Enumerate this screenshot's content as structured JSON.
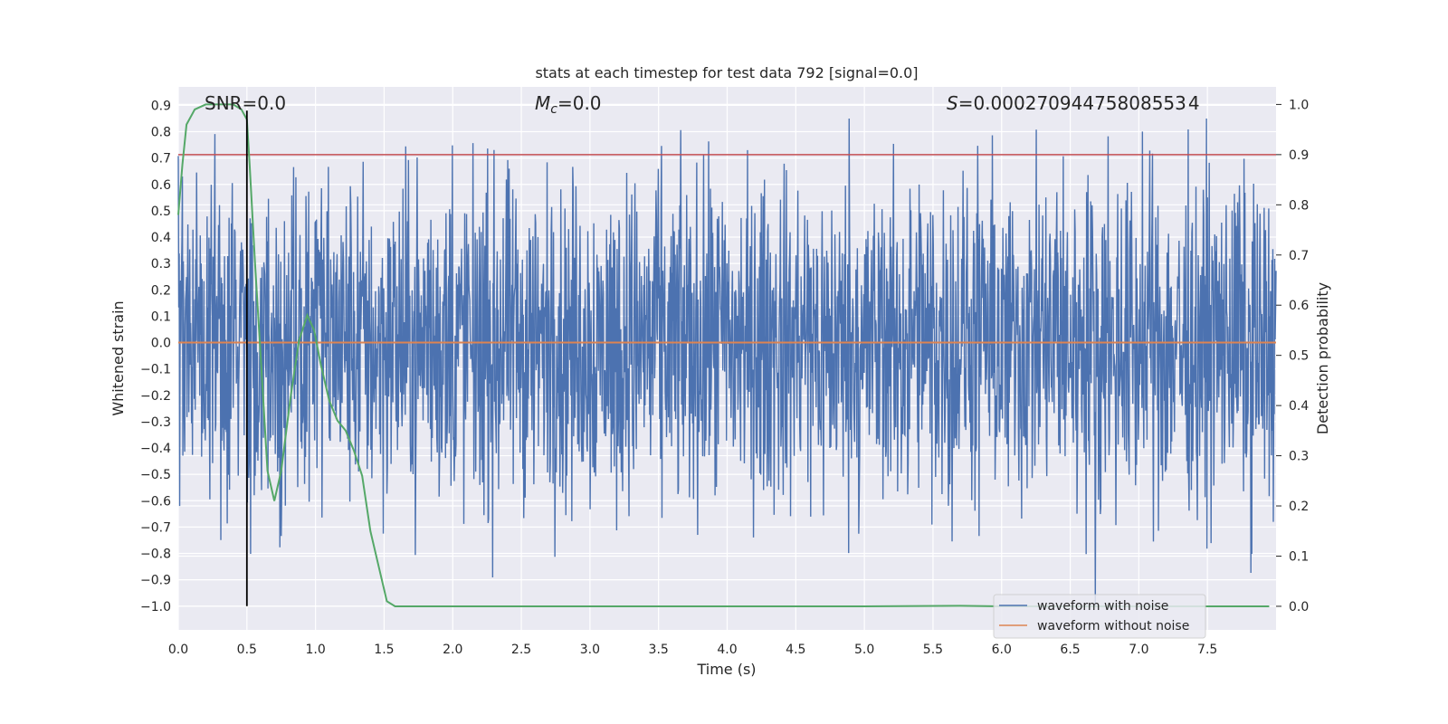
{
  "chart_data": {
    "type": "line",
    "title": "stats at each timestep for test data 792 [signal=0.0]",
    "xlabel": "Time (s)",
    "ylabel": "Whitened strain",
    "ylabel_right": "Detection probability",
    "xlim": [
      0.0,
      8.0
    ],
    "ylim": [
      -1.09,
      0.97
    ],
    "ylim_right": [
      -0.047,
      1.035
    ],
    "x_ticks": [
      0.0,
      0.5,
      1.0,
      1.5,
      2.0,
      2.5,
      3.0,
      3.5,
      4.0,
      4.5,
      5.0,
      5.5,
      6.0,
      6.5,
      7.0,
      7.5
    ],
    "x_tick_labels": [
      "0.0",
      "0.5",
      "1.0",
      "1.5",
      "2.0",
      "2.5",
      "3.0",
      "3.5",
      "4.0",
      "4.5",
      "5.0",
      "5.5",
      "6.0",
      "6.5",
      "7.0",
      "7.5"
    ],
    "y_ticks": [
      0.9,
      0.8,
      0.7,
      0.6,
      0.5,
      0.4,
      0.3,
      0.2,
      0.1,
      0.0,
      -0.1,
      -0.2,
      -0.3,
      -0.4,
      -0.5,
      -0.6,
      -0.7,
      -0.8,
      -0.9,
      -1.0
    ],
    "y_tick_labels": [
      "0.9",
      "0.8",
      "0.7",
      "0.6",
      "0.5",
      "0.4",
      "0.3",
      "0.2",
      "0.1",
      "0.0",
      "−0.1",
      "−0.2",
      "−0.3",
      "−0.4",
      "−0.5",
      "−0.6",
      "−0.7",
      "−0.8",
      "−0.9",
      "−1.0"
    ],
    "y_right_ticks": [
      1.0,
      0.9,
      0.8,
      0.7,
      0.6,
      0.5,
      0.4,
      0.3,
      0.2,
      0.1,
      0.0
    ],
    "y_right_tick_labels": [
      "1.0",
      "0.9",
      "0.8",
      "0.7",
      "0.6",
      "0.5",
      "0.4",
      "0.3",
      "0.2",
      "0.1",
      "0.0"
    ],
    "grid": true,
    "legend_position": "lower-right",
    "annotations": {
      "snr": "SNR=0.0",
      "mc_symbol": "M",
      "mc_sub": "c",
      "mc_value": "=0.0",
      "s_symbol": "S",
      "s_value": "=0.00027094475808553 4"
    },
    "series": [
      {
        "name": "waveform with noise",
        "color": "#4c72b0",
        "axis": "left",
        "description_range": [
          -1.0,
          0.85
        ],
        "t_range": [
          0.0,
          8.0
        ]
      },
      {
        "name": "waveform without noise",
        "color": "#dd8452",
        "axis": "left",
        "x": [
          0.0,
          8.0
        ],
        "y": [
          0.0,
          0.0
        ]
      },
      {
        "name": "detection probability",
        "color": "#55a868",
        "axis": "right",
        "x": [
          0.0,
          0.03,
          0.06,
          0.12,
          0.2,
          0.3,
          0.4,
          0.46,
          0.5,
          0.52,
          0.56,
          0.6,
          0.65,
          0.7,
          0.75,
          0.82,
          0.88,
          0.94,
          0.99,
          1.04,
          1.1,
          1.16,
          1.22,
          1.28,
          1.34,
          1.4,
          1.46,
          1.52,
          1.58,
          2.0,
          3.0,
          4.0,
          5.0,
          5.7,
          6.0,
          7.0,
          7.95
        ],
        "y": [
          0.78,
          0.88,
          0.96,
          0.99,
          1.0,
          1.0,
          1.0,
          0.99,
          0.97,
          0.88,
          0.68,
          0.5,
          0.27,
          0.21,
          0.27,
          0.42,
          0.53,
          0.58,
          0.55,
          0.48,
          0.41,
          0.37,
          0.35,
          0.31,
          0.26,
          0.15,
          0.08,
          0.01,
          0.0,
          0.0,
          0.0,
          0.0,
          0.0,
          0.001,
          0.0,
          0.0,
          0.0
        ]
      }
    ],
    "threshold_line": {
      "color": "#c44e52",
      "y_right": 0.9
    },
    "marker_line": {
      "color": "#000000",
      "x": 0.5,
      "y": [
        -1.0,
        0.88
      ]
    }
  }
}
